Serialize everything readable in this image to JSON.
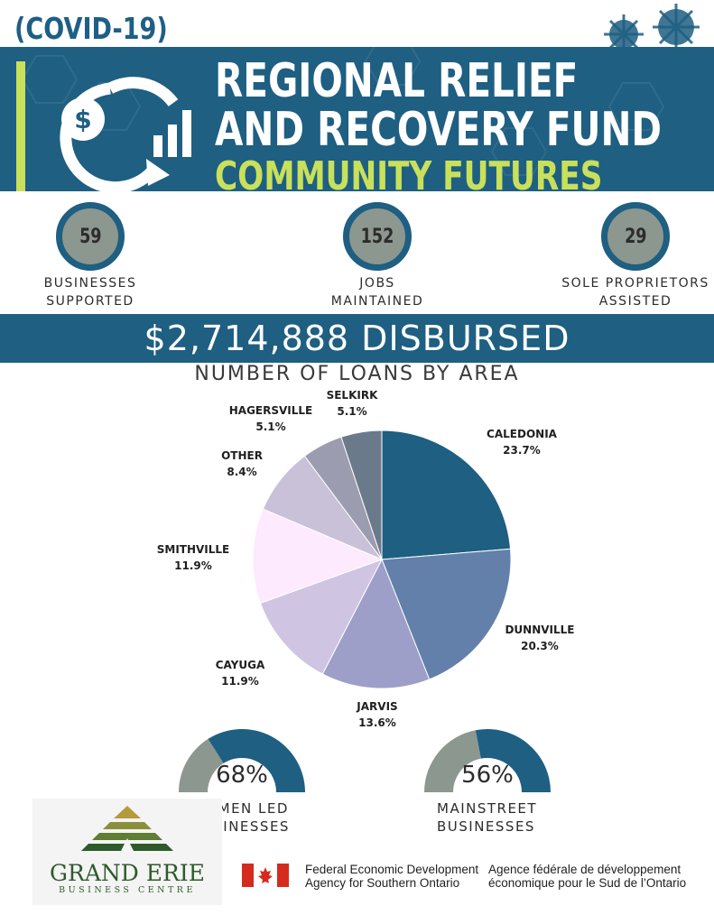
{
  "header": {
    "tag": "(COVID-19)",
    "title_line1": "REGIONAL RELIEF",
    "title_line2": "AND RECOVERY FUND",
    "title_line3": "COMMUNITY FUTURES"
  },
  "stats": [
    {
      "value": "59",
      "label_line1": "BUSINESSES",
      "label_line2": "SUPPORTED"
    },
    {
      "value": "152",
      "label_line1": "JOBS",
      "label_line2": "MAINTAINED"
    },
    {
      "value": "29",
      "label_line1": "SOLE PROPRIETORS",
      "label_line2": "ASSISTED"
    }
  ],
  "disbursed": "$2,714,888 DISBURSED",
  "chart_data": {
    "type": "pie",
    "title": "NUMBER OF LOANS BY AREA",
    "slices": [
      {
        "name": "CALEDONIA",
        "label": "23.7%",
        "value": 23.7,
        "color": "#1e5f82"
      },
      {
        "name": "DUNNVILLE",
        "label": "20.3%",
        "value": 20.3,
        "color": "#6280aa"
      },
      {
        "name": "JARVIS",
        "label": "13.6%",
        "value": 13.6,
        "color": "#9d9fc8"
      },
      {
        "name": "CAYUGA",
        "label": "11.9%",
        "value": 11.9,
        "color": "#cfc4e2"
      },
      {
        "name": "SMITHVILLE",
        "label": "11.9%",
        "value": 11.9,
        "color": "#fdeaff"
      },
      {
        "name": "OTHER",
        "label": "8.4%",
        "value": 8.4,
        "color": "#c9c1d8"
      },
      {
        "name": "HAGERSVILLE",
        "label": "5.1%",
        "value": 5.1,
        "color": "#9c9cb0"
      },
      {
        "name": "SELKIRK",
        "label": "5.1%",
        "value": 5.1,
        "color": "#6a7a8a"
      }
    ]
  },
  "gauges": [
    {
      "percent": "68%",
      "fraction": 0.68,
      "label_line1": "WOMEN LED",
      "label_line2": "BUSINESSES"
    },
    {
      "percent": "56%",
      "fraction": 0.56,
      "label_line1": "MAINSTREET",
      "label_line2": "BUSINESSES"
    }
  ],
  "colors": {
    "primary": "#1e5f82",
    "accent": "#c9e05a",
    "gauge_grey": "#8c978f"
  },
  "footer": {
    "brand": "GRAND ERIE",
    "brand_sub": "BUSINESS CENTRE",
    "agency_en_line1": "Federal Economic Development",
    "agency_en_line2": "Agency for Southern Ontario",
    "agency_fr_line1": "Agence fédérale de développement",
    "agency_fr_line2": "économique pour le Sud de l’Ontario"
  }
}
